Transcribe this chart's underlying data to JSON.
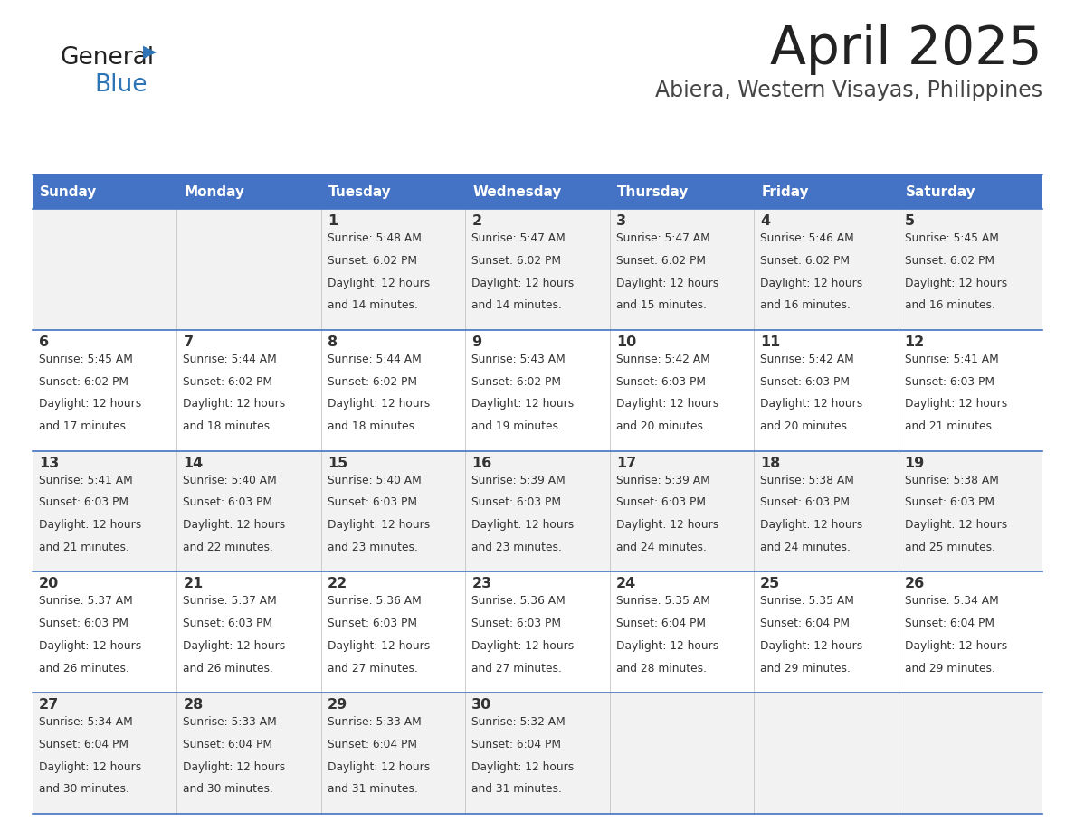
{
  "title": "April 2025",
  "subtitle": "Abiera, Western Visayas, Philippines",
  "header_bg": "#4472C4",
  "header_text": "#FFFFFF",
  "row_bg_even": "#F2F2F2",
  "row_bg_odd": "#FFFFFF",
  "day_names": [
    "Sunday",
    "Monday",
    "Tuesday",
    "Wednesday",
    "Thursday",
    "Friday",
    "Saturday"
  ],
  "days": [
    {
      "day": 1,
      "col": 2,
      "row": 0,
      "sunrise": "5:48 AM",
      "sunset": "6:02 PM",
      "daylight": "12 hours and 14 minutes."
    },
    {
      "day": 2,
      "col": 3,
      "row": 0,
      "sunrise": "5:47 AM",
      "sunset": "6:02 PM",
      "daylight": "12 hours and 14 minutes."
    },
    {
      "day": 3,
      "col": 4,
      "row": 0,
      "sunrise": "5:47 AM",
      "sunset": "6:02 PM",
      "daylight": "12 hours and 15 minutes."
    },
    {
      "day": 4,
      "col": 5,
      "row": 0,
      "sunrise": "5:46 AM",
      "sunset": "6:02 PM",
      "daylight": "12 hours and 16 minutes."
    },
    {
      "day": 5,
      "col": 6,
      "row": 0,
      "sunrise": "5:45 AM",
      "sunset": "6:02 PM",
      "daylight": "12 hours and 16 minutes."
    },
    {
      "day": 6,
      "col": 0,
      "row": 1,
      "sunrise": "5:45 AM",
      "sunset": "6:02 PM",
      "daylight": "12 hours and 17 minutes."
    },
    {
      "day": 7,
      "col": 1,
      "row": 1,
      "sunrise": "5:44 AM",
      "sunset": "6:02 PM",
      "daylight": "12 hours and 18 minutes."
    },
    {
      "day": 8,
      "col": 2,
      "row": 1,
      "sunrise": "5:44 AM",
      "sunset": "6:02 PM",
      "daylight": "12 hours and 18 minutes."
    },
    {
      "day": 9,
      "col": 3,
      "row": 1,
      "sunrise": "5:43 AM",
      "sunset": "6:02 PM",
      "daylight": "12 hours and 19 minutes."
    },
    {
      "day": 10,
      "col": 4,
      "row": 1,
      "sunrise": "5:42 AM",
      "sunset": "6:03 PM",
      "daylight": "12 hours and 20 minutes."
    },
    {
      "day": 11,
      "col": 5,
      "row": 1,
      "sunrise": "5:42 AM",
      "sunset": "6:03 PM",
      "daylight": "12 hours and 20 minutes."
    },
    {
      "day": 12,
      "col": 6,
      "row": 1,
      "sunrise": "5:41 AM",
      "sunset": "6:03 PM",
      "daylight": "12 hours and 21 minutes."
    },
    {
      "day": 13,
      "col": 0,
      "row": 2,
      "sunrise": "5:41 AM",
      "sunset": "6:03 PM",
      "daylight": "12 hours and 21 minutes."
    },
    {
      "day": 14,
      "col": 1,
      "row": 2,
      "sunrise": "5:40 AM",
      "sunset": "6:03 PM",
      "daylight": "12 hours and 22 minutes."
    },
    {
      "day": 15,
      "col": 2,
      "row": 2,
      "sunrise": "5:40 AM",
      "sunset": "6:03 PM",
      "daylight": "12 hours and 23 minutes."
    },
    {
      "day": 16,
      "col": 3,
      "row": 2,
      "sunrise": "5:39 AM",
      "sunset": "6:03 PM",
      "daylight": "12 hours and 23 minutes."
    },
    {
      "day": 17,
      "col": 4,
      "row": 2,
      "sunrise": "5:39 AM",
      "sunset": "6:03 PM",
      "daylight": "12 hours and 24 minutes."
    },
    {
      "day": 18,
      "col": 5,
      "row": 2,
      "sunrise": "5:38 AM",
      "sunset": "6:03 PM",
      "daylight": "12 hours and 24 minutes."
    },
    {
      "day": 19,
      "col": 6,
      "row": 2,
      "sunrise": "5:38 AM",
      "sunset": "6:03 PM",
      "daylight": "12 hours and 25 minutes."
    },
    {
      "day": 20,
      "col": 0,
      "row": 3,
      "sunrise": "5:37 AM",
      "sunset": "6:03 PM",
      "daylight": "12 hours and 26 minutes."
    },
    {
      "day": 21,
      "col": 1,
      "row": 3,
      "sunrise": "5:37 AM",
      "sunset": "6:03 PM",
      "daylight": "12 hours and 26 minutes."
    },
    {
      "day": 22,
      "col": 2,
      "row": 3,
      "sunrise": "5:36 AM",
      "sunset": "6:03 PM",
      "daylight": "12 hours and 27 minutes."
    },
    {
      "day": 23,
      "col": 3,
      "row": 3,
      "sunrise": "5:36 AM",
      "sunset": "6:03 PM",
      "daylight": "12 hours and 27 minutes."
    },
    {
      "day": 24,
      "col": 4,
      "row": 3,
      "sunrise": "5:35 AM",
      "sunset": "6:04 PM",
      "daylight": "12 hours and 28 minutes."
    },
    {
      "day": 25,
      "col": 5,
      "row": 3,
      "sunrise": "5:35 AM",
      "sunset": "6:04 PM",
      "daylight": "12 hours and 29 minutes."
    },
    {
      "day": 26,
      "col": 6,
      "row": 3,
      "sunrise": "5:34 AM",
      "sunset": "6:04 PM",
      "daylight": "12 hours and 29 minutes."
    },
    {
      "day": 27,
      "col": 0,
      "row": 4,
      "sunrise": "5:34 AM",
      "sunset": "6:04 PM",
      "daylight": "12 hours and 30 minutes."
    },
    {
      "day": 28,
      "col": 1,
      "row": 4,
      "sunrise": "5:33 AM",
      "sunset": "6:04 PM",
      "daylight": "12 hours and 30 minutes."
    },
    {
      "day": 29,
      "col": 2,
      "row": 4,
      "sunrise": "5:33 AM",
      "sunset": "6:04 PM",
      "daylight": "12 hours and 31 minutes."
    },
    {
      "day": 30,
      "col": 3,
      "row": 4,
      "sunrise": "5:32 AM",
      "sunset": "6:04 PM",
      "daylight": "12 hours and 31 minutes."
    }
  ],
  "logo_general_color": "#222222",
  "logo_blue_color": "#2E75B6",
  "logo_triangle_color": "#2E75B6",
  "title_color": "#222222",
  "subtitle_color": "#444444",
  "cell_text_color": "#333333",
  "divider_color": "#4472C4",
  "num_rows": 5,
  "fig_width": 11.88,
  "fig_height": 9.18,
  "dpi": 100
}
